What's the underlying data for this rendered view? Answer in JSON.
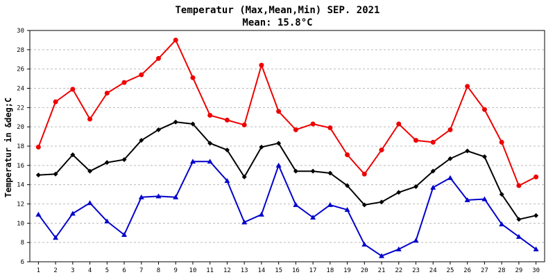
{
  "chart_data": {
    "type": "line",
    "title": "Temperatur (Max,Mean,Min) SEP. 2021",
    "subtitle": "Mean: 15.8°C",
    "xlabel": "",
    "ylabel": "Temperatur in &deg;C",
    "xlim": [
      0.5,
      30.5
    ],
    "ylim": [
      6,
      30
    ],
    "grid": true,
    "x": [
      1,
      2,
      3,
      4,
      5,
      6,
      7,
      8,
      9,
      10,
      11,
      12,
      13,
      14,
      15,
      16,
      17,
      18,
      19,
      20,
      21,
      22,
      23,
      24,
      25,
      26,
      27,
      28,
      29,
      30
    ],
    "x_ticks": [
      "1",
      "2",
      "3",
      "4",
      "5",
      "6",
      "7",
      "8",
      "9",
      "10",
      "11",
      "12",
      "13",
      "14",
      "15",
      "16",
      "17",
      "18",
      "19",
      "20",
      "21",
      "22",
      "23",
      "24",
      "25",
      "26",
      "27",
      "28",
      "29",
      "30"
    ],
    "y_ticks": [
      "6",
      "8",
      "10",
      "12",
      "14",
      "16",
      "18",
      "20",
      "22",
      "24",
      "26",
      "28",
      "30"
    ],
    "series": [
      {
        "color": "#ee0000",
        "marker": "circle",
        "values": [
          17.9,
          22.6,
          23.9,
          20.8,
          23.5,
          24.6,
          25.4,
          27.1,
          29.0,
          25.1,
          21.2,
          20.7,
          20.2,
          26.4,
          21.6,
          19.7,
          20.3,
          19.9,
          17.1,
          15.1,
          17.6,
          20.3,
          18.6,
          18.4,
          19.7,
          24.2,
          21.8,
          18.4,
          13.9,
          14.8
        ]
      },
      {
        "color": "#000000",
        "marker": "diamond",
        "values": [
          15.0,
          15.1,
          17.1,
          15.4,
          16.3,
          16.6,
          18.6,
          19.7,
          20.5,
          20.3,
          18.3,
          17.6,
          14.8,
          17.9,
          18.3,
          15.4,
          15.4,
          15.2,
          13.9,
          11.9,
          12.2,
          13.2,
          13.8,
          15.4,
          16.7,
          17.5,
          16.9,
          13.0,
          10.4,
          10.8
        ]
      },
      {
        "color": "#0000cc",
        "marker": "triangle",
        "values": [
          10.9,
          8.5,
          11.0,
          12.1,
          10.2,
          8.8,
          12.7,
          12.8,
          12.7,
          16.4,
          16.4,
          14.4,
          10.1,
          10.9,
          16.0,
          11.9,
          10.6,
          11.9,
          11.4,
          7.8,
          6.6,
          7.3,
          8.2,
          13.7,
          14.7,
          12.4,
          12.5,
          9.9,
          8.6,
          7.3
        ]
      }
    ]
  }
}
